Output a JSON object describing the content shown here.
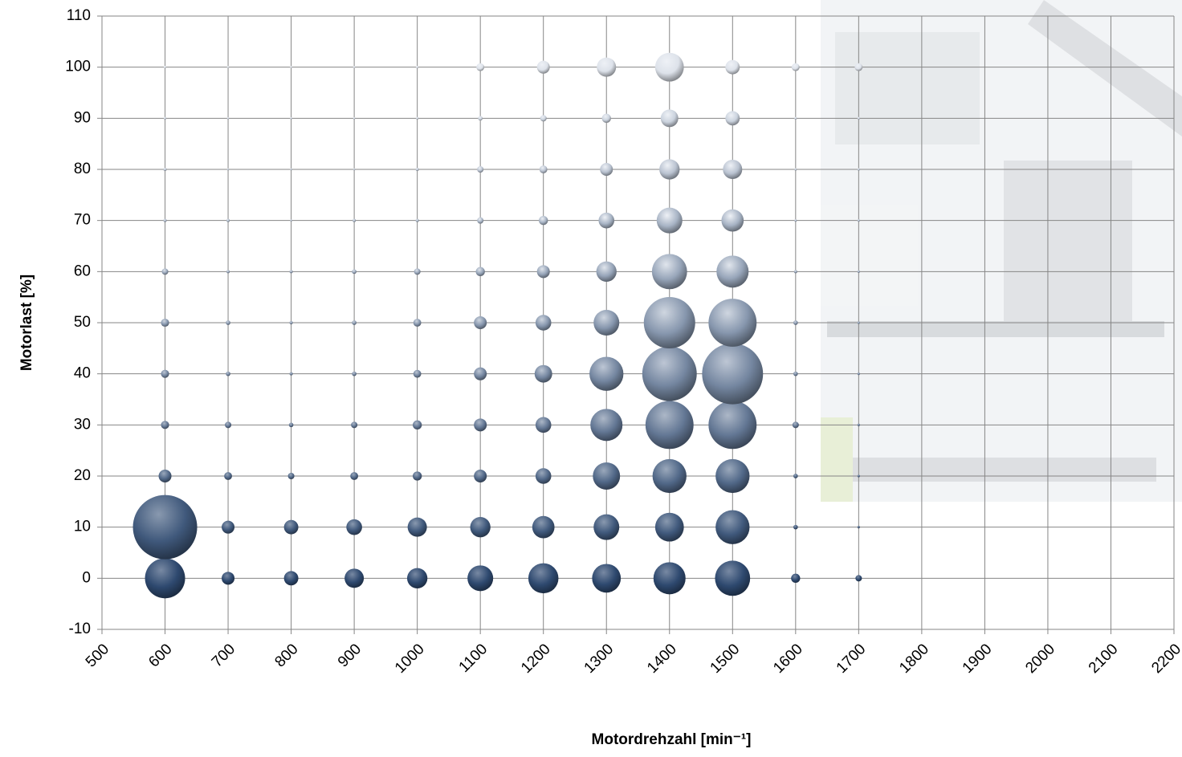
{
  "chart_data": {
    "type": "bubble",
    "x_label": "Motordrehzahl [min⁻¹]",
    "y_label": "Motorlast [%]",
    "xlim": [
      500,
      2200
    ],
    "xticks": [
      500,
      600,
      700,
      800,
      900,
      1000,
      1100,
      1200,
      1300,
      1400,
      1500,
      1600,
      1700,
      1800,
      1900,
      2000,
      2100,
      2200
    ],
    "ylim": [
      -10,
      110
    ],
    "yticks": [
      -10,
      0,
      10,
      20,
      30,
      40,
      50,
      60,
      70,
      80,
      90,
      100,
      110
    ],
    "grid": true,
    "color_low": "#1d3a63",
    "color_high": "#eef1f6",
    "x": [
      600,
      600,
      600,
      600,
      600,
      600,
      600,
      600,
      600,
      600,
      600,
      700,
      700,
      700,
      700,
      700,
      700,
      700,
      700,
      700,
      700,
      700,
      800,
      800,
      800,
      800,
      800,
      800,
      800,
      800,
      800,
      800,
      800,
      900,
      900,
      900,
      900,
      900,
      900,
      900,
      900,
      900,
      900,
      900,
      1000,
      1000,
      1000,
      1000,
      1000,
      1000,
      1000,
      1000,
      1000,
      1000,
      1000,
      1100,
      1100,
      1100,
      1100,
      1100,
      1100,
      1100,
      1100,
      1100,
      1100,
      1100,
      1200,
      1200,
      1200,
      1200,
      1200,
      1200,
      1200,
      1200,
      1200,
      1200,
      1200,
      1300,
      1300,
      1300,
      1300,
      1300,
      1300,
      1300,
      1300,
      1300,
      1300,
      1300,
      1400,
      1400,
      1400,
      1400,
      1400,
      1400,
      1400,
      1400,
      1400,
      1400,
      1400,
      1500,
      1500,
      1500,
      1500,
      1500,
      1500,
      1500,
      1500,
      1500,
      1500,
      1500,
      1600,
      1600,
      1600,
      1600,
      1600,
      1600,
      1600,
      1600,
      1600,
      1600,
      1600,
      1700,
      1700,
      1700,
      1700,
      1700,
      1700,
      1700,
      1700,
      1700,
      1700,
      1700
    ],
    "y": [
      0,
      10,
      20,
      30,
      40,
      50,
      60,
      70,
      80,
      90,
      100,
      0,
      10,
      20,
      30,
      40,
      50,
      60,
      70,
      80,
      90,
      100,
      0,
      10,
      20,
      30,
      40,
      50,
      60,
      70,
      80,
      90,
      100,
      0,
      10,
      20,
      30,
      40,
      50,
      60,
      70,
      80,
      90,
      100,
      0,
      10,
      20,
      30,
      40,
      50,
      60,
      70,
      80,
      90,
      100,
      0,
      10,
      20,
      30,
      40,
      50,
      60,
      70,
      80,
      90,
      100,
      0,
      10,
      20,
      30,
      40,
      50,
      60,
      70,
      80,
      90,
      100,
      0,
      10,
      20,
      30,
      40,
      50,
      60,
      70,
      80,
      90,
      100,
      0,
      10,
      20,
      30,
      40,
      50,
      60,
      70,
      80,
      90,
      100,
      0,
      10,
      20,
      30,
      40,
      50,
      60,
      70,
      80,
      90,
      100,
      0,
      10,
      20,
      30,
      40,
      50,
      60,
      70,
      80,
      90,
      100,
      0,
      10,
      20,
      30,
      40,
      50,
      60,
      70,
      80,
      90,
      100
    ],
    "sizes": [
      39,
      100,
      4,
      1.6,
      1.6,
      1.6,
      1,
      0.25,
      0.25,
      0.15,
      0.15,
      4,
      4,
      1.5,
      1,
      0.5,
      0.5,
      0.25,
      0.25,
      0.1,
      0.1,
      0.1,
      5,
      5,
      1,
      0.5,
      0.25,
      0.25,
      0.25,
      0.1,
      0.1,
      0.1,
      0.1,
      9,
      6,
      1.5,
      1,
      0.5,
      0.5,
      0.5,
      0.25,
      0.1,
      0.1,
      0.1,
      10,
      9,
      2,
      2,
      1.5,
      1.5,
      1,
      0.25,
      0.25,
      0.15,
      0.15,
      16,
      10,
      4,
      4,
      4,
      4,
      2,
      1,
      1,
      0.5,
      1.5,
      22,
      12,
      6,
      6,
      7.5,
      6,
      4,
      2,
      1.5,
      1,
      4,
      20,
      16,
      18,
      25,
      28,
      16,
      10,
      6,
      4,
      2,
      9,
      25,
      20,
      28,
      56,
      72,
      64,
      30,
      16,
      10,
      7.5,
      20,
      30,
      28,
      28,
      56,
      90,
      56,
      25,
      12,
      9,
      5,
      5,
      2,
      0.5,
      0.5,
      1,
      0.5,
      0.5,
      0.25,
      0.15,
      0.15,
      0.15,
      1.5,
      1,
      0.15,
      0.15,
      0.15,
      0.15,
      0.15,
      0.15,
      0.15,
      0.15,
      0.15,
      1.5
    ]
  }
}
